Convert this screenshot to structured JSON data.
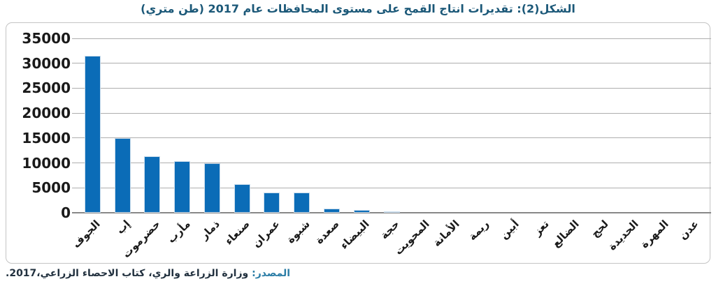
{
  "chart_data": {
    "type": "bar",
    "title": "الشكل(2): تقديرات انتاج القمح على مستوى المحافظات عام 2017 (طن متري)",
    "categories": [
      "الجوف",
      "إب",
      "حضرموت",
      "مأرب",
      "ذمار",
      "صنعاء",
      "عمران",
      "شبوة",
      "صعدة",
      "البيضاء",
      "حجة",
      "المحويت",
      "الأمانة",
      "ريمة",
      "أبين",
      "تعز",
      "الضالع",
      "لحج",
      "الحديدة",
      "المهرة",
      "عدن"
    ],
    "values": [
      31500,
      15000,
      11300,
      10300,
      9900,
      5700,
      4000,
      4100,
      900,
      600,
      350,
      0,
      0,
      0,
      0,
      0,
      0,
      0,
      0,
      0,
      0
    ],
    "xlabel": "",
    "ylabel": "",
    "ylim": [
      0,
      35000
    ],
    "ytick_step": 5000,
    "ytick_labels": [
      "0",
      "5000",
      "10000",
      "15000",
      "20000",
      "25000",
      "30000",
      "35000"
    ],
    "grid": true,
    "legend": false,
    "bar_color": "#0b6cb7"
  },
  "source": {
    "label": "المصدر:",
    "text": " وزارة الزراعة والري، كتاب الاحصاء الزراعي،2017."
  },
  "colors": {
    "title": "#1b5878",
    "bar": "#0b6cb7",
    "gridline": "#aeaeae",
    "axis": "#888888",
    "frame_border": "#c4c4c4",
    "source_label": "#2b7da6",
    "source_text": "#22313f"
  }
}
